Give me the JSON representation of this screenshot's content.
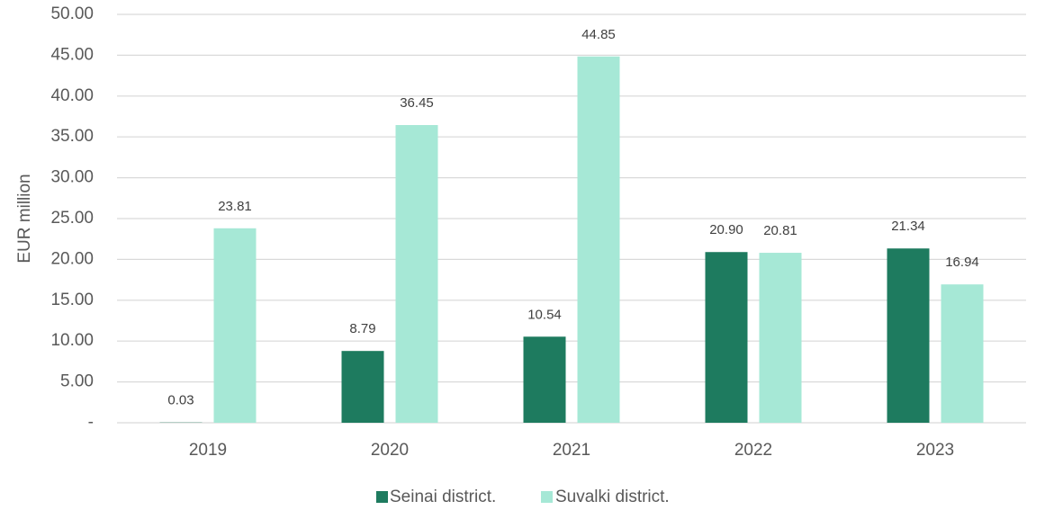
{
  "chart_data": {
    "type": "bar",
    "title": "",
    "xlabel": "",
    "ylabel": "EUR million",
    "ylim": [
      0,
      50
    ],
    "y_ticks": [
      0,
      5,
      10,
      15,
      20,
      25,
      30,
      35,
      40,
      45,
      50
    ],
    "y_tick_labels": [
      "-",
      "5.00",
      "10.00",
      "15.00",
      "20.00",
      "25.00",
      "30.00",
      "35.00",
      "40.00",
      "45.00",
      "50.00"
    ],
    "grid": true,
    "legend_position": "bottom",
    "categories": [
      "2019",
      "2020",
      "2021",
      "2022",
      "2023"
    ],
    "series": [
      {
        "name": "Seinai district.",
        "color": "#1e7b5f",
        "values": [
          0.03,
          8.79,
          10.54,
          20.9,
          21.34
        ],
        "labels": [
          "0.03",
          "8.79",
          "10.54",
          "20.90",
          "21.34"
        ]
      },
      {
        "name": "Suvalki district.",
        "color": "#a6e8d6",
        "values": [
          23.81,
          36.45,
          44.85,
          20.81,
          16.94
        ],
        "labels": [
          "23.81",
          "36.45",
          "44.85",
          "20.81",
          "16.94"
        ]
      }
    ]
  }
}
